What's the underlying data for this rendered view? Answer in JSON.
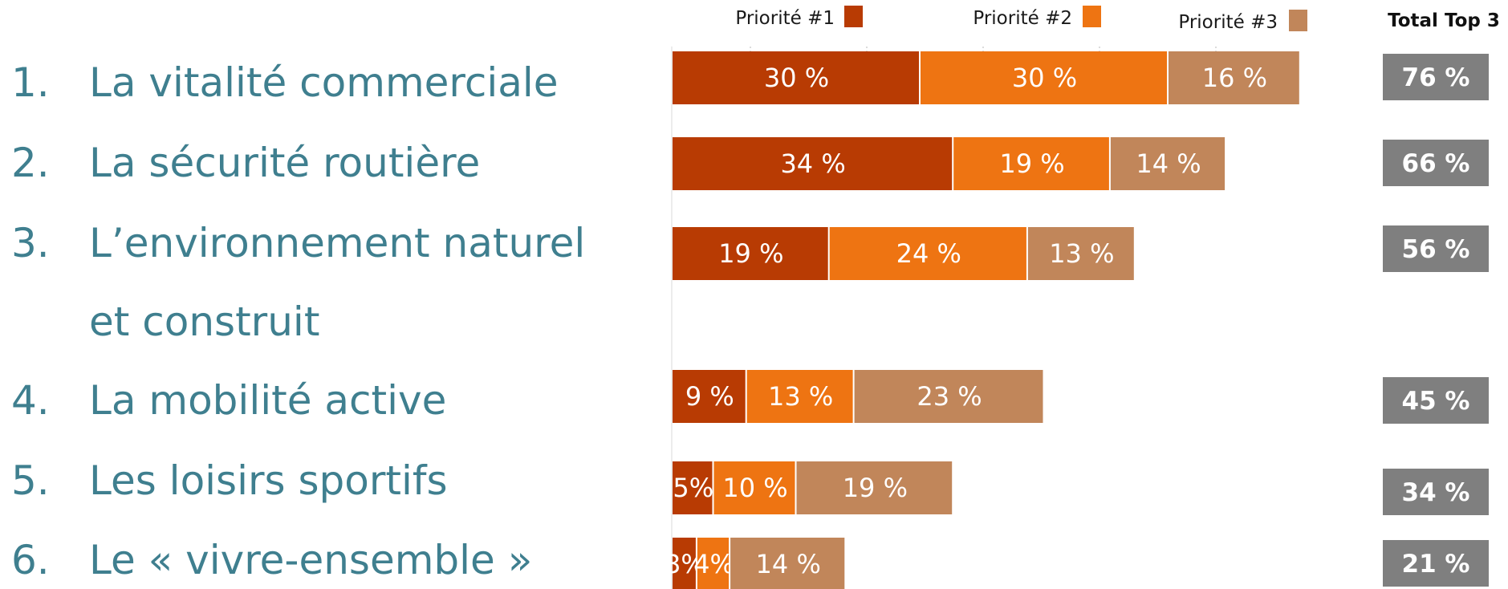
{
  "items": [
    {
      "number": "1.",
      "text": "La vitalité commerciale"
    },
    {
      "number": "2.",
      "text": "La sécurité routière"
    },
    {
      "number": "3.",
      "text": "L’environnement naturel",
      "text2": "et construit"
    },
    {
      "number": "4.",
      "text": "La mobilité active"
    },
    {
      "number": "5.",
      "text": "Les loisirs sportifs"
    },
    {
      "number": "6.",
      "text": "Le « vivre-ensemble »"
    }
  ],
  "colors": {
    "text": "#3f7f8f",
    "p1": "#b83b03",
    "p2": "#ee7412",
    "p3": "#c1865a",
    "total_bg": "#7f7f7f"
  },
  "chart_data": {
    "type": "bar",
    "orientation": "horizontal",
    "stacked": true,
    "categories": [
      "La vitalité commerciale",
      "La sécurité routière",
      "L’environnement naturel et construit",
      "La mobilité active",
      "Les loisirs sportifs",
      "Le « vivre-ensemble »"
    ],
    "series": [
      {
        "name": "Priorité #1",
        "values": [
          30,
          34,
          19,
          9,
          5,
          3
        ],
        "labels": [
          "30 %",
          "34 %",
          "19 %",
          "9 %",
          "5%",
          "3%"
        ]
      },
      {
        "name": "Priorité #2",
        "values": [
          30,
          19,
          24,
          13,
          10,
          4
        ],
        "labels": [
          "30 %",
          "19 %",
          "24 %",
          "13 %",
          "10 %",
          "4%"
        ]
      },
      {
        "name": "Priorité #3",
        "values": [
          16,
          14,
          13,
          23,
          19,
          14
        ],
        "labels": [
          "16 %",
          "14 %",
          "13 %",
          "23 %",
          "19 %",
          "14 %"
        ]
      }
    ],
    "totals_header": "Total Top 3",
    "totals": [
      "76 %",
      "66 %",
      "56 %",
      "45 %",
      "34 %",
      "21 %"
    ],
    "legend_position": "top"
  }
}
